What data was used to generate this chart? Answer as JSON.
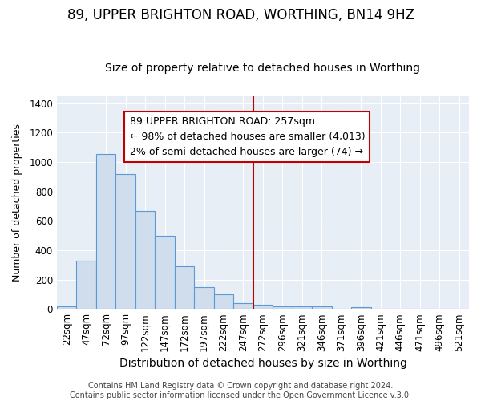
{
  "title": "89, UPPER BRIGHTON ROAD, WORTHING, BN14 9HZ",
  "subtitle": "Size of property relative to detached houses in Worthing",
  "xlabel": "Distribution of detached houses by size in Worthing",
  "ylabel": "Number of detached properties",
  "bar_labels": [
    "22sqm",
    "47sqm",
    "72sqm",
    "97sqm",
    "122sqm",
    "147sqm",
    "172sqm",
    "197sqm",
    "222sqm",
    "247sqm",
    "272sqm",
    "296sqm",
    "321sqm",
    "346sqm",
    "371sqm",
    "396sqm",
    "421sqm",
    "446sqm",
    "471sqm",
    "496sqm",
    "521sqm"
  ],
  "bar_heights": [
    20,
    330,
    1055,
    920,
    665,
    500,
    290,
    150,
    100,
    40,
    30,
    20,
    20,
    15,
    0,
    10,
    0,
    0,
    0,
    0,
    0
  ],
  "bar_color": "#cfdded",
  "bar_edge_color": "#5b9bd5",
  "background_color": "#ffffff",
  "plot_bg_color": "#e8eef5",
  "grid_color": "#ffffff",
  "vline_x": 9.5,
  "vline_color": "#c00000",
  "ylim": [
    0,
    1450
  ],
  "yticks": [
    0,
    200,
    400,
    600,
    800,
    1000,
    1200,
    1400
  ],
  "annotation_text": "89 UPPER BRIGHTON ROAD: 257sqm\n← 98% of detached houses are smaller (4,013)\n2% of semi-detached houses are larger (74) →",
  "annotation_box_edge": "#c00000",
  "footer_text": "Contains HM Land Registry data © Crown copyright and database right 2024.\nContains public sector information licensed under the Open Government Licence v.3.0.",
  "title_fontsize": 12,
  "subtitle_fontsize": 10,
  "xlabel_fontsize": 10,
  "ylabel_fontsize": 9,
  "tick_fontsize": 8.5,
  "annotation_fontsize": 9,
  "footer_fontsize": 7
}
